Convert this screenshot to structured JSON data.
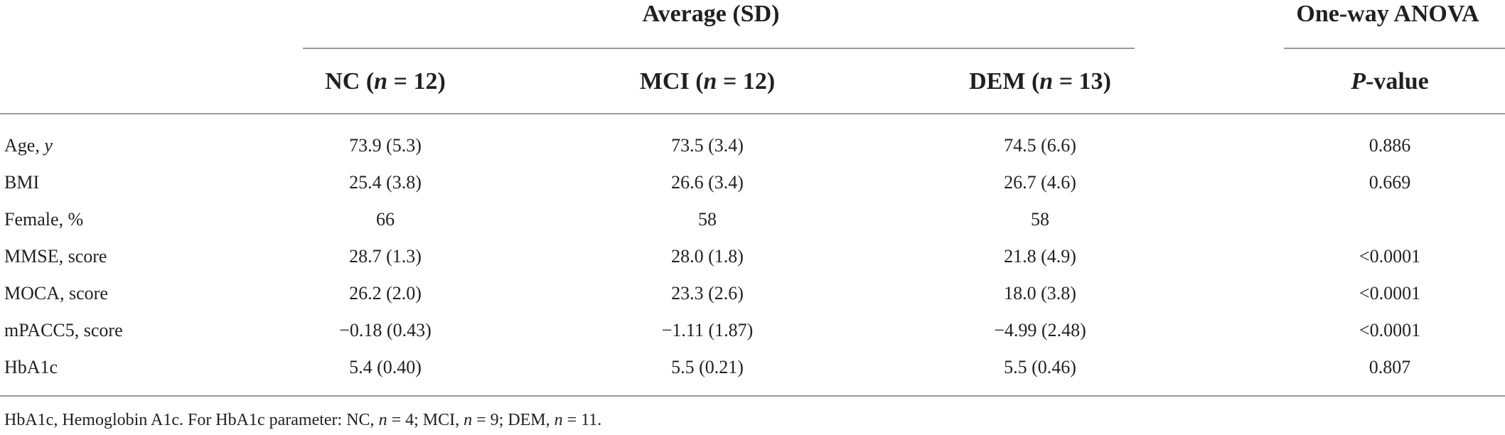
{
  "table": {
    "group_header": "Average (SD)",
    "anova_header": "One-way ANOVA",
    "columns": {
      "nc": {
        "name": "NC",
        "n_prefix": "n",
        "n_suffix": " = 12"
      },
      "mci": {
        "name": "MCI",
        "n_prefix": "n",
        "n_suffix": " = 12"
      },
      "dem": {
        "name": "DEM",
        "n_prefix": "n",
        "n_suffix": " = 13"
      },
      "p": {
        "italic": "P",
        "rest": "-value"
      }
    },
    "rows": [
      {
        "label": "Age, ",
        "label_italic": "y",
        "nc": "73.9 (5.3)",
        "mci": "73.5 (3.4)",
        "dem": "74.5 (6.6)",
        "p": "0.886"
      },
      {
        "label": "BMI",
        "label_italic": "",
        "nc": "25.4 (3.8)",
        "mci": "26.6 (3.4)",
        "dem": "26.7 (4.6)",
        "p": "0.669"
      },
      {
        "label": "Female, %",
        "label_italic": "",
        "nc": "66",
        "mci": "58",
        "dem": "58",
        "p": ""
      },
      {
        "label": "MMSE, score",
        "label_italic": "",
        "nc": "28.7 (1.3)",
        "mci": "28.0 (1.8)",
        "dem": "21.8 (4.9)",
        "p": "<0.0001"
      },
      {
        "label": "MOCA, score",
        "label_italic": "",
        "nc": "26.2 (2.0)",
        "mci": "23.3 (2.6)",
        "dem": "18.0 (3.8)",
        "p": "<0.0001"
      },
      {
        "label": "mPACC5, score",
        "label_italic": "",
        "nc": "−0.18 (0.43)",
        "mci": "−1.11 (1.87)",
        "dem": "−4.99 (2.48)",
        "p": "<0.0001"
      },
      {
        "label": "HbA1c",
        "label_italic": "",
        "nc": "5.4 (0.40)",
        "mci": "5.5 (0.21)",
        "dem": "5.5 (0.46)",
        "p": "0.807"
      }
    ],
    "footnote": {
      "t1": "HbA1c, Hemoglobin A1c. For HbA1c parameter: NC, ",
      "n": "n",
      "t2": " = 4; MCI, ",
      "t3": " = 9; DEM, ",
      "t4": " = 11."
    }
  }
}
